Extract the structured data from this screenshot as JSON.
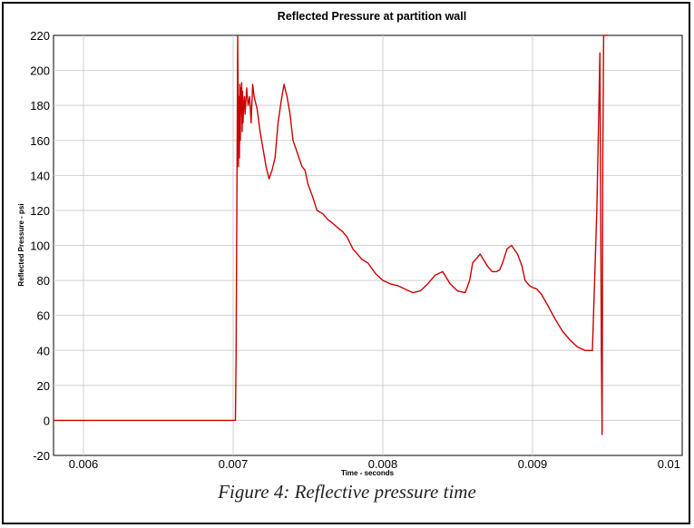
{
  "figure": {
    "caption": "Figure 4: Reflective pressure time"
  },
  "chart_data": {
    "type": "line",
    "title": "Reflected Pressure at partition wall",
    "xlabel": "Time - seconds",
    "ylabel": "Reflected Pressure - psi",
    "xlim": [
      0.0058,
      0.01
    ],
    "ylim": [
      -20,
      220
    ],
    "xticks": [
      0.006,
      0.007,
      0.008,
      0.009,
      0.01
    ],
    "xtick_labels": [
      "0.006",
      "0.007",
      "0.008",
      "0.009",
      "0.01"
    ],
    "yticks": [
      -20,
      0,
      20,
      40,
      60,
      80,
      100,
      120,
      140,
      160,
      180,
      200,
      220
    ],
    "ytick_labels": [
      "-20",
      "0",
      "20",
      "40",
      "60",
      "80",
      "100",
      "120",
      "140",
      "160",
      "180",
      "200",
      "220"
    ],
    "grid": true,
    "line_color": "#cc0000",
    "series": [
      {
        "x": [
          0.0058,
          0.0062,
          0.0066,
          0.007,
          0.007015,
          0.00702,
          0.00703,
          0.007033,
          0.007036,
          0.007039,
          0.007042,
          0.007045,
          0.007048,
          0.007051,
          0.007054,
          0.007057,
          0.00706,
          0.007063,
          0.007066,
          0.00707,
          0.007075,
          0.00708,
          0.00709,
          0.0071,
          0.00711,
          0.00712,
          0.00713,
          0.00714,
          0.00716,
          0.00718,
          0.0072,
          0.00722,
          0.00724,
          0.00726,
          0.00728,
          0.0073,
          0.00732,
          0.00734,
          0.00736,
          0.00738,
          0.0074,
          0.00742,
          0.00744,
          0.00746,
          0.00748,
          0.0075,
          0.00753,
          0.00756,
          0.0076,
          0.00763,
          0.00766,
          0.0077,
          0.00773,
          0.00776,
          0.0078,
          0.00783,
          0.00786,
          0.0079,
          0.00795,
          0.008,
          0.00805,
          0.0081,
          0.00815,
          0.0082,
          0.00825,
          0.0083,
          0.00835,
          0.0084,
          0.00845,
          0.0085,
          0.00855,
          0.00858,
          0.0086,
          0.00865,
          0.0087,
          0.00873,
          0.00876,
          0.00878,
          0.0088,
          0.00883,
          0.00886,
          0.0089,
          0.00893,
          0.00895,
          0.00898,
          0.009,
          0.00903,
          0.00906,
          0.0091,
          0.00915,
          0.0092,
          0.00925,
          0.0093,
          0.00935,
          0.0094,
          0.00943,
          0.00945,
          0.00946,
          0.009465,
          0.00947,
          0.009475,
          0.00948,
          0.009485,
          0.00949,
          0.009495,
          0.0095
        ],
        "y": [
          0,
          0,
          0,
          0,
          0,
          40,
          220,
          190,
          145,
          185,
          150,
          192,
          160,
          190,
          175,
          193,
          165,
          188,
          170,
          180,
          185,
          175,
          190,
          180,
          185,
          170,
          192,
          185,
          178,
          165,
          155,
          145,
          138,
          143,
          150,
          170,
          182,
          192,
          185,
          175,
          160,
          155,
          150,
          145,
          143,
          135,
          128,
          120,
          118,
          115,
          113,
          110,
          108,
          105,
          98,
          95,
          92,
          90,
          84,
          80,
          78,
          77,
          75,
          73,
          74,
          78,
          83,
          85,
          78,
          74,
          73,
          80,
          90,
          95,
          88,
          85,
          85,
          86,
          90,
          98,
          100,
          95,
          88,
          80,
          77,
          76,
          75,
          72,
          66,
          58,
          51,
          46,
          42,
          40,
          40,
          120,
          210,
          40,
          -8,
          150,
          220,
          220,
          220,
          220,
          220,
          220
        ]
      }
    ]
  }
}
